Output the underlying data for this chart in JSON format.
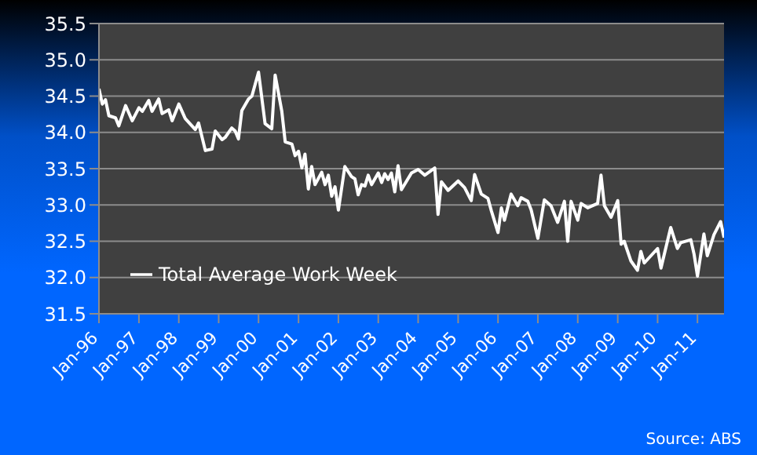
{
  "chart_data": {
    "type": "line",
    "legend": "bottom left",
    "grid": "y",
    "marker": "none",
    "line_style": "solid",
    "annotations": [
      "Source: ABS"
    ],
    "ylim": [
      31.5,
      35.5
    ],
    "yticks": [
      {
        "value": 31.5,
        "label": "31.5"
      },
      {
        "value": 32,
        "label": "32.0"
      },
      {
        "value": 32.5,
        "label": "32.5"
      },
      {
        "value": 33,
        "label": "33.0"
      },
      {
        "value": 33.5,
        "label": "33.5"
      },
      {
        "value": 34,
        "label": "34.0"
      },
      {
        "value": 34.5,
        "label": "34.5"
      },
      {
        "value": 35,
        "label": "35.0"
      },
      {
        "value": 35.5,
        "label": "35.5"
      }
    ],
    "xlim": [
      "1996-01",
      "2011-09"
    ],
    "xticks": [
      {
        "value": "1996-01",
        "label": "Jan-96"
      },
      {
        "value": "1997-01",
        "label": "Jan-97"
      },
      {
        "value": "1998-01",
        "label": "Jan-98"
      },
      {
        "value": "1999-01",
        "label": "Jan-99"
      },
      {
        "value": "2000-01",
        "label": "Jan-00"
      },
      {
        "value": "2001-01",
        "label": "Jan-01"
      },
      {
        "value": "2002-01",
        "label": "Jan-02"
      },
      {
        "value": "2003-01",
        "label": "Jan-03"
      },
      {
        "value": "2004-01",
        "label": "Jan-04"
      },
      {
        "value": "2005-01",
        "label": "Jan-05"
      },
      {
        "value": "2006-01",
        "label": "Jan-06"
      },
      {
        "value": "2007-01",
        "label": "Jan-07"
      },
      {
        "value": "2008-01",
        "label": "Jan-08"
      },
      {
        "value": "2009-01",
        "label": "Jan-09"
      },
      {
        "value": "2010-01",
        "label": "Jan-10"
      },
      {
        "value": "2011-01",
        "label": "Jan-11"
      }
    ],
    "x": [
      "1996-01",
      "1996-02",
      "1996-03",
      "1996-04",
      "1996-06",
      "1996-07",
      "1996-09",
      "1996-11",
      "1997-01",
      "1997-02",
      "1997-04",
      "1997-05",
      "1997-07",
      "1997-08",
      "1997-10",
      "1997-11",
      "1998-01",
      "1998-03",
      "1998-06",
      "1998-07",
      "1998-09",
      "1998-11",
      "1998-12",
      "1999-02",
      "1999-03",
      "1999-05",
      "1999-06",
      "1999-07",
      "1999-08",
      "1999-10",
      "1999-11",
      "2000-01",
      "2000-03",
      "2000-05",
      "2000-06",
      "2000-08",
      "2000-09",
      "2000-11",
      "2000-12",
      "2001-01",
      "2001-02",
      "2001-03",
      "2001-04",
      "2001-05",
      "2001-06",
      "2001-08",
      "2001-09",
      "2001-10",
      "2001-11",
      "2001-12",
      "2002-01",
      "2002-03",
      "2002-05",
      "2002-06",
      "2002-07",
      "2002-08",
      "2002-09",
      "2002-10",
      "2002-11",
      "2003-01",
      "2003-02",
      "2003-03",
      "2003-04",
      "2003-05",
      "2003-06",
      "2003-07",
      "2003-08",
      "2003-11",
      "2004-01",
      "2004-03",
      "2004-06",
      "2004-07",
      "2004-08",
      "2004-10",
      "2005-01",
      "2005-03",
      "2005-05",
      "2005-06",
      "2005-08",
      "2005-10",
      "2005-11",
      "2006-01",
      "2006-02",
      "2006-03",
      "2006-05",
      "2006-07",
      "2006-08",
      "2006-10",
      "2006-11",
      "2007-01",
      "2007-03",
      "2007-05",
      "2007-07",
      "2007-09",
      "2007-10",
      "2007-11",
      "2008-01",
      "2008-02",
      "2008-04",
      "2008-07",
      "2008-08",
      "2008-09",
      "2008-11",
      "2009-01",
      "2009-02",
      "2009-03",
      "2009-05",
      "2009-07",
      "2009-08",
      "2009-09",
      "2010-01",
      "2010-02",
      "2010-05",
      "2010-07",
      "2010-08",
      "2010-11",
      "2010-12",
      "2011-01",
      "2011-03",
      "2011-04",
      "2011-06",
      "2011-08",
      "2011-09"
    ],
    "series": [
      {
        "name": "Total Average Work Week",
        "color": "#ffffff",
        "values": [
          34.6,
          34.39,
          34.45,
          34.23,
          34.2,
          34.09,
          34.37,
          34.16,
          34.34,
          34.29,
          34.44,
          34.29,
          34.46,
          34.26,
          34.31,
          34.16,
          34.39,
          34.19,
          34.04,
          34.13,
          33.75,
          33.77,
          34.02,
          33.9,
          33.93,
          34.06,
          34.02,
          33.91,
          34.3,
          34.46,
          34.5,
          34.83,
          34.12,
          34.05,
          34.79,
          34.29,
          33.87,
          33.84,
          33.68,
          33.74,
          33.51,
          33.7,
          33.22,
          33.53,
          33.28,
          33.45,
          33.28,
          33.41,
          33.12,
          33.25,
          32.93,
          33.53,
          33.39,
          33.36,
          33.14,
          33.28,
          33.26,
          33.41,
          33.28,
          33.44,
          33.31,
          33.43,
          33.35,
          33.44,
          33.18,
          33.54,
          33.21,
          33.44,
          33.49,
          33.41,
          33.51,
          32.87,
          33.32,
          33.2,
          33.33,
          33.24,
          33.06,
          33.42,
          33.15,
          33.09,
          32.92,
          32.62,
          32.96,
          32.79,
          33.15,
          32.99,
          33.1,
          33.05,
          32.93,
          32.54,
          33.07,
          32.99,
          32.76,
          33.05,
          32.5,
          33.05,
          32.79,
          33.02,
          32.96,
          33.02,
          33.41,
          32.99,
          32.83,
          33.06,
          32.46,
          32.5,
          32.23,
          32.1,
          32.36,
          32.2,
          32.4,
          32.13,
          32.69,
          32.4,
          32.48,
          32.52,
          32.32,
          32.02,
          32.6,
          32.3,
          32.59,
          32.77,
          32.55
        ]
      }
    ]
  }
}
